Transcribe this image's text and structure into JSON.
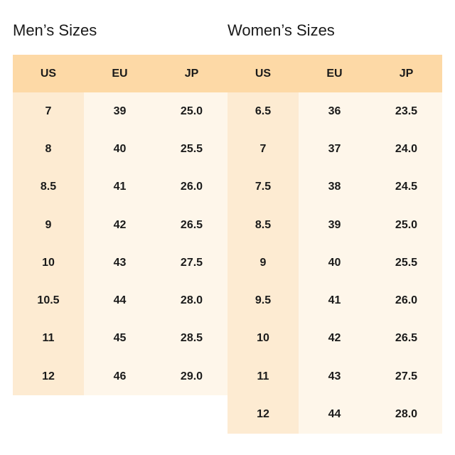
{
  "men": {
    "title": "Men’s Sizes",
    "headers": [
      "US",
      "EU",
      "JP"
    ],
    "rows": [
      [
        "7",
        "39",
        "25.0"
      ],
      [
        "8",
        "40",
        "25.5"
      ],
      [
        "8.5",
        "41",
        "26.0"
      ],
      [
        "9",
        "42",
        "26.5"
      ],
      [
        "10",
        "43",
        "27.5"
      ],
      [
        "10.5",
        "44",
        "28.0"
      ],
      [
        "11",
        "45",
        "28.5"
      ],
      [
        "12",
        "46",
        "29.0"
      ]
    ]
  },
  "women": {
    "title": "Women’s Sizes",
    "headers": [
      "US",
      "EU",
      "JP"
    ],
    "rows": [
      [
        "6.5",
        "36",
        "23.5"
      ],
      [
        "7",
        "37",
        "24.0"
      ],
      [
        "7.5",
        "38",
        "24.5"
      ],
      [
        "8.5",
        "39",
        "25.0"
      ],
      [
        "9",
        "40",
        "25.5"
      ],
      [
        "9.5",
        "41",
        "26.0"
      ],
      [
        "10",
        "42",
        "26.5"
      ],
      [
        "11",
        "43",
        "27.5"
      ],
      [
        "12",
        "44",
        "28.0"
      ]
    ]
  },
  "colors": {
    "header_bg": "#fdd9a6",
    "us_column_bg": "#fdebd2",
    "cell_bg": "#fef6ea"
  }
}
